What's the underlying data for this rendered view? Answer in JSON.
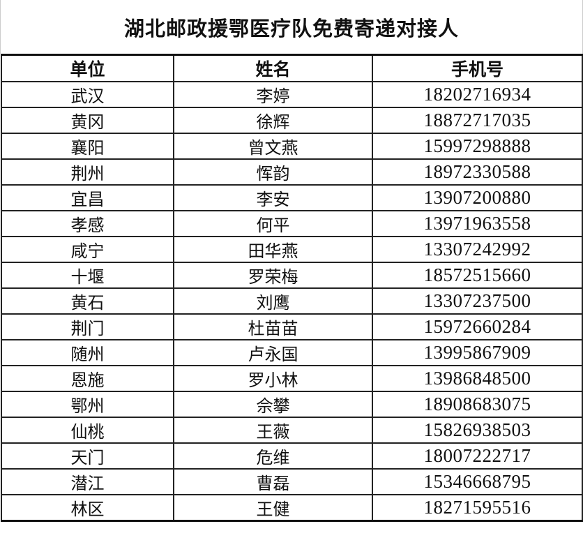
{
  "title": "湖北邮政援鄂医疗队免费寄递对接人",
  "headers": [
    "单位",
    "姓名",
    "手机号"
  ],
  "rows": [
    [
      "武汉",
      "李婷",
      "18202716934"
    ],
    [
      "黄冈",
      "徐辉",
      "18872717035"
    ],
    [
      "襄阳",
      "曾文燕",
      "15997298888"
    ],
    [
      "荆州",
      "恽韵",
      "18972330588"
    ],
    [
      "宜昌",
      "李安",
      "13907200880"
    ],
    [
      "孝感",
      "何平",
      "13971963558"
    ],
    [
      "咸宁",
      "田华燕",
      "13307242992"
    ],
    [
      "十堰",
      "罗荣梅",
      "18572515660"
    ],
    [
      "黄石",
      "刘鹰",
      "13307237500"
    ],
    [
      "荆门",
      "杜苗苗",
      "15972660284"
    ],
    [
      "随州",
      "卢永国",
      "13995867909"
    ],
    [
      "恩施",
      "罗小林",
      "13986848500"
    ],
    [
      "鄂州",
      "佘攀",
      "18908683075"
    ],
    [
      "仙桃",
      "王薇",
      "15826938503"
    ],
    [
      "天门",
      "危维",
      "18007222717"
    ],
    [
      "潜江",
      "曹磊",
      "15346668795"
    ],
    [
      "林区",
      "王健",
      "18271595516"
    ]
  ]
}
